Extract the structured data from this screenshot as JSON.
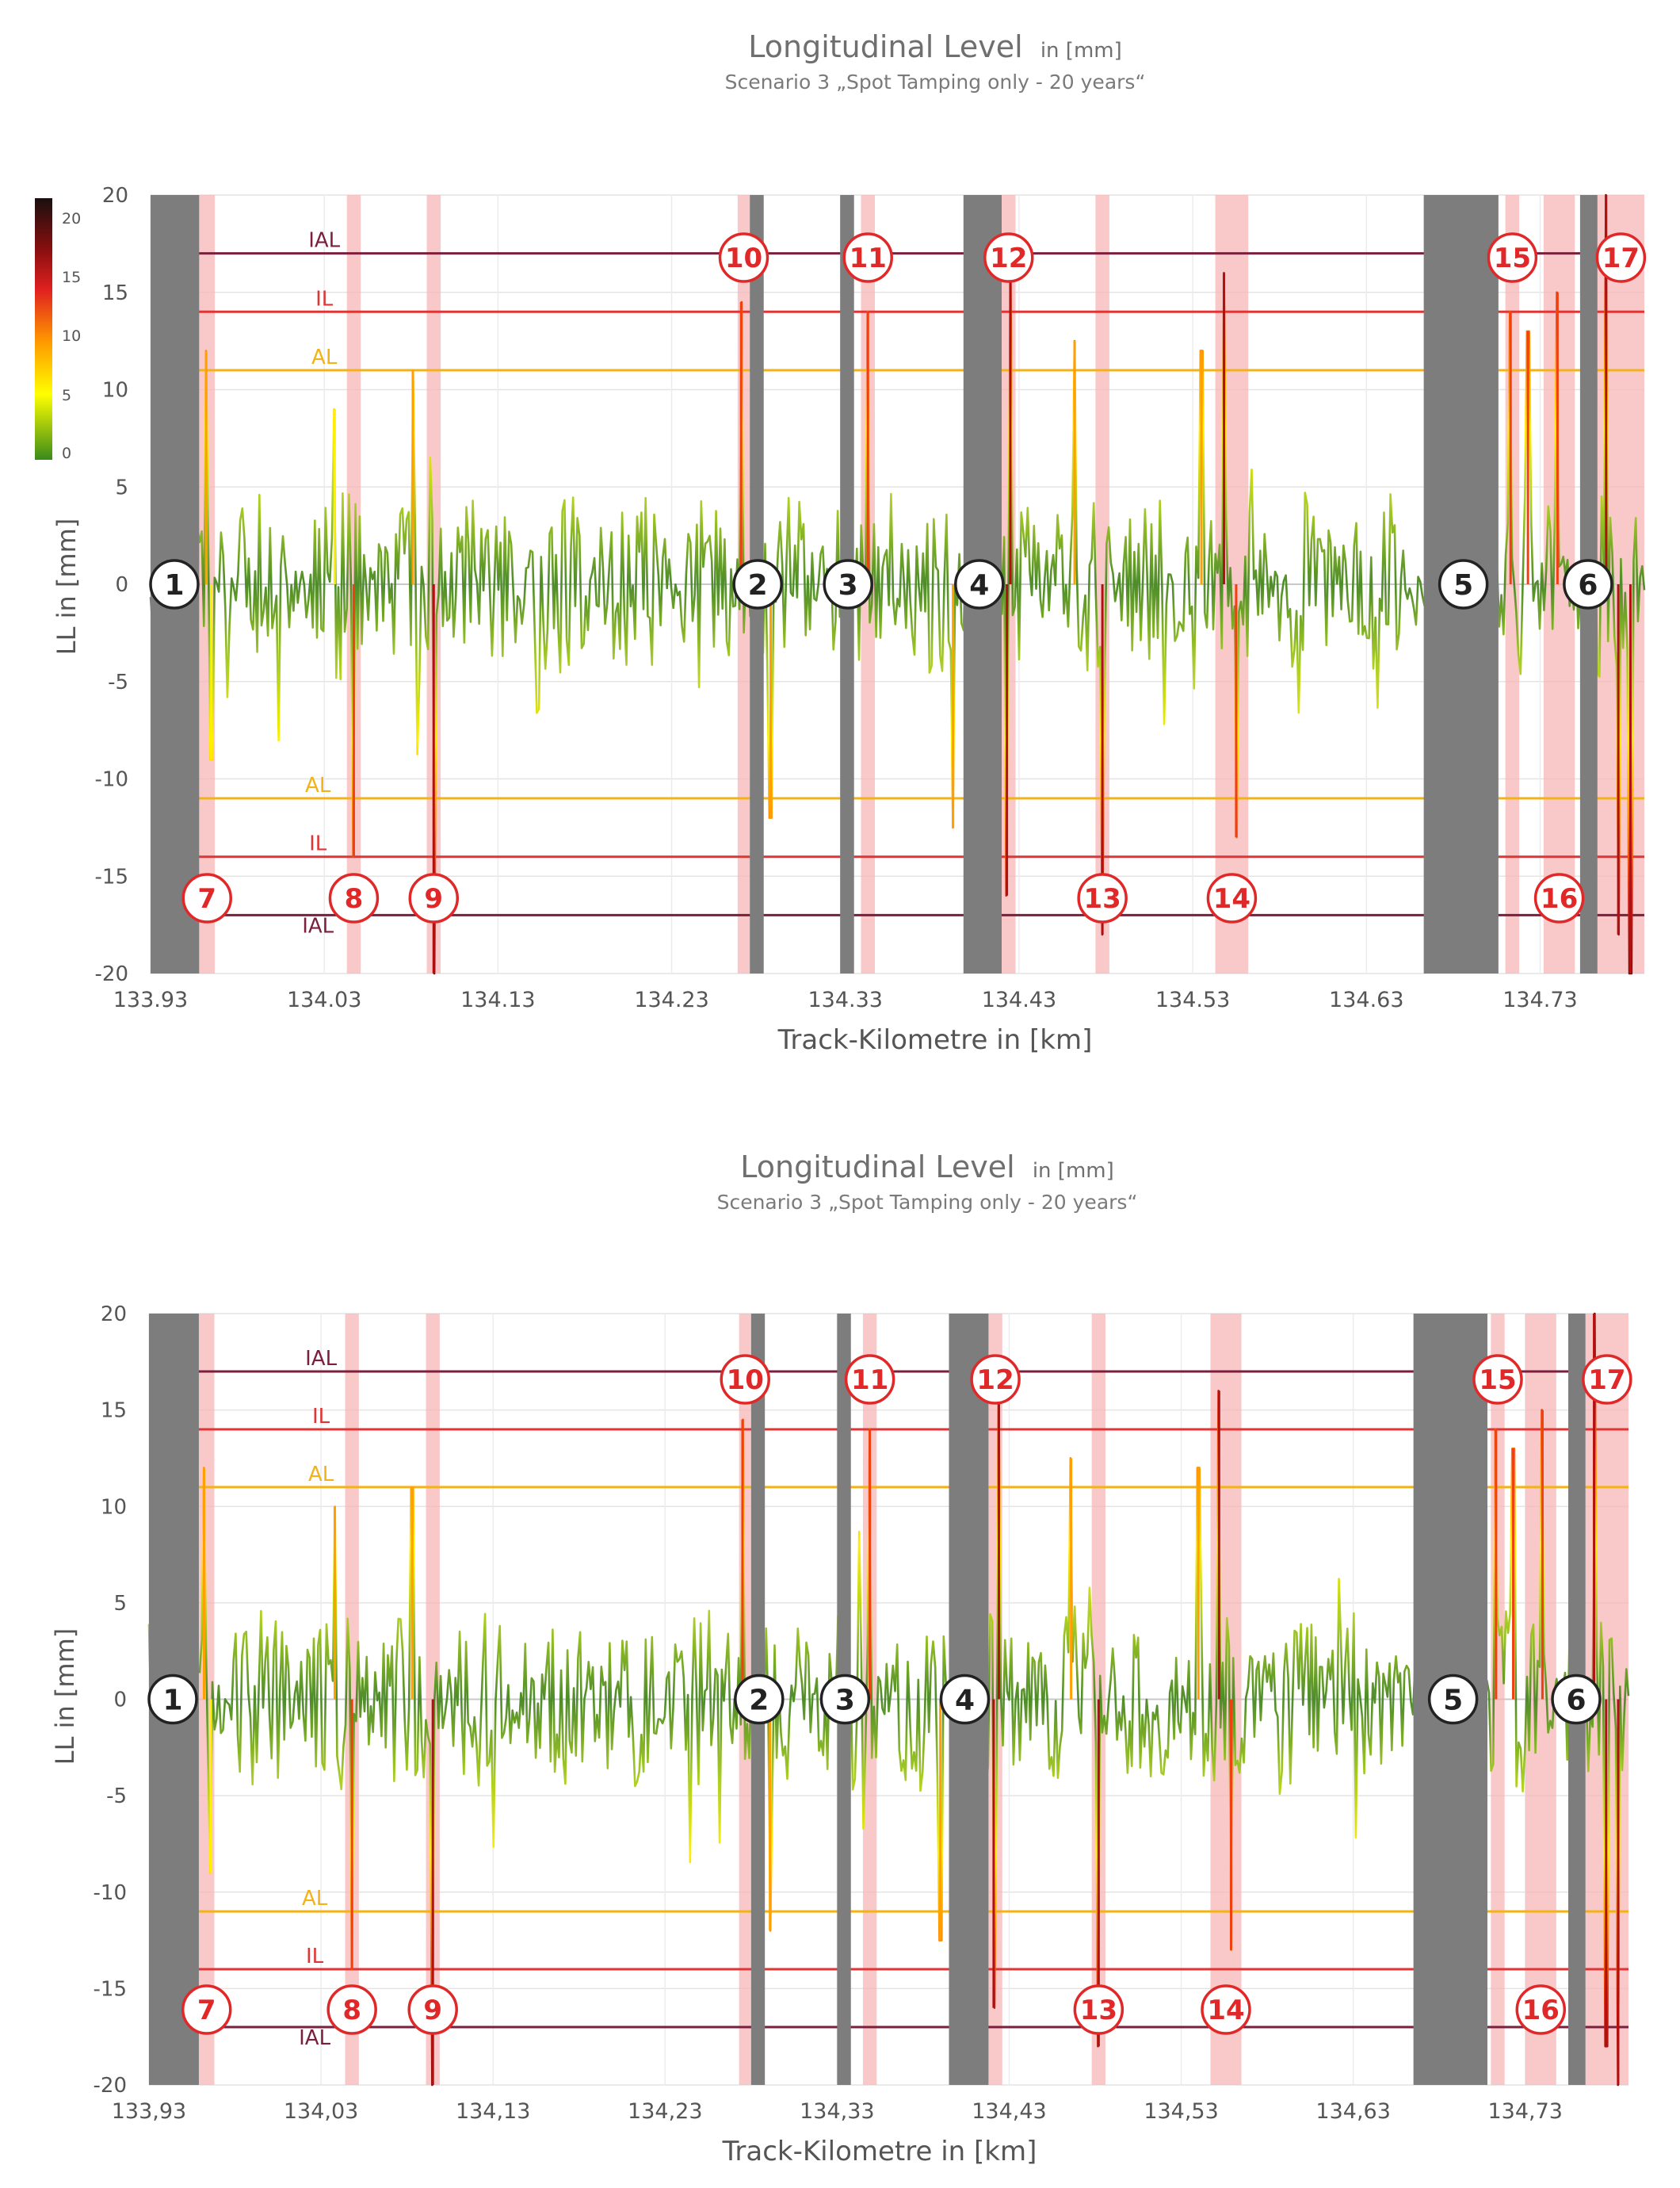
{
  "chart_data": [
    {
      "type": "line",
      "title": "Longitudinal Level",
      "title_unit": "in [mm]",
      "subtitle": "Scenario 3 „Spot Tamping only - 20 years“",
      "xlabel": "Track-Kilometre in [km]",
      "ylabel": "LL in [mm]",
      "xlim": [
        133.93,
        134.79
      ],
      "ylim": [
        -20,
        20
      ],
      "x_ticks": [
        "133.93",
        "134.03",
        "134.13",
        "134.23",
        "134.33",
        "134.43",
        "134.53",
        "134.63",
        "134.73"
      ],
      "y_ticks": [
        "20",
        "15",
        "10",
        "5",
        "0",
        "-5",
        "-10",
        "-15",
        "-20"
      ],
      "color_scale": {
        "ticks": [
          "20",
          "15",
          "10",
          "5",
          "0"
        ],
        "min": 0,
        "max": 20
      },
      "limits": [
        {
          "name": "IAL",
          "upper": 17,
          "lower": -17,
          "color": "#7a1f3d"
        },
        {
          "name": "IL",
          "upper": 14,
          "lower": -14,
          "color": "#e03535"
        },
        {
          "name": "AL",
          "upper": 11,
          "lower": -11,
          "color": "#f2b21a"
        }
      ],
      "grey_zones": [
        {
          "label": "1",
          "x0": 133.93,
          "x1": 133.958
        },
        {
          "label": "2",
          "x0": 134.275,
          "x1": 134.283
        },
        {
          "label": "3",
          "x0": 134.327,
          "x1": 134.335
        },
        {
          "label": "4",
          "x0": 134.398,
          "x1": 134.42
        },
        {
          "label": "5",
          "x0": 134.663,
          "x1": 134.706
        },
        {
          "label": "6",
          "x0": 134.753,
          "x1": 134.763
        }
      ],
      "pink_zones": [
        {
          "label": "7",
          "x0": 133.958,
          "x1": 133.967
        },
        {
          "label": "8",
          "x0": 134.043,
          "x1": 134.051
        },
        {
          "label": "9",
          "x0": 134.089,
          "x1": 134.097
        },
        {
          "label": "10",
          "x0": 134.268,
          "x1": 134.275
        },
        {
          "label": "11",
          "x0": 134.339,
          "x1": 134.347
        },
        {
          "label": "12",
          "x0": 134.42,
          "x1": 134.428
        },
        {
          "label": "13",
          "x0": 134.474,
          "x1": 134.482
        },
        {
          "label": "14",
          "x0": 134.543,
          "x1": 134.562
        },
        {
          "label": "15",
          "x0": 134.71,
          "x1": 134.718
        },
        {
          "label": "16",
          "x0": 134.732,
          "x1": 134.75
        },
        {
          "label": "17",
          "x0": 134.763,
          "x1": 134.79
        }
      ],
      "spikes": [
        {
          "x": 133.962,
          "v": 12
        },
        {
          "x": 133.965,
          "v": -9
        },
        {
          "x": 134.036,
          "v": 9
        },
        {
          "x": 134.047,
          "v": -14
        },
        {
          "x": 134.081,
          "v": 11
        },
        {
          "x": 134.093,
          "v": -20
        },
        {
          "x": 134.27,
          "v": 14.5
        },
        {
          "x": 134.279,
          "v": 10
        },
        {
          "x": 134.287,
          "v": -12
        },
        {
          "x": 134.343,
          "v": 14
        },
        {
          "x": 134.392,
          "v": -12.5
        },
        {
          "x": 134.423,
          "v": -16
        },
        {
          "x": 134.425,
          "v": 17
        },
        {
          "x": 134.462,
          "v": 12.5
        },
        {
          "x": 134.478,
          "v": -18
        },
        {
          "x": 134.535,
          "v": 12
        },
        {
          "x": 134.548,
          "v": 16
        },
        {
          "x": 134.555,
          "v": -13
        },
        {
          "x": 134.713,
          "v": 14
        },
        {
          "x": 134.723,
          "v": 13
        },
        {
          "x": 134.74,
          "v": 15
        },
        {
          "x": 134.768,
          "v": 20
        },
        {
          "x": 134.775,
          "v": -18
        },
        {
          "x": 134.782,
          "v": -20
        }
      ]
    },
    {
      "type": "line",
      "title": "Longitudinal Level",
      "title_unit": "in [mm]",
      "subtitle": "Scenario 3 „Spot Tamping only - 20 years“",
      "xlabel": "Track-Kilometre in [km]",
      "ylabel": "LL in [mm]",
      "xlim": [
        133.93,
        134.79
      ],
      "ylim": [
        -20,
        20
      ],
      "x_ticks": [
        "133,93",
        "134,03",
        "134,13",
        "134,23",
        "134,33",
        "134,43",
        "134,53",
        "134,63",
        "134,73"
      ],
      "y_ticks": [
        "20",
        "15",
        "10",
        "5",
        "0",
        "-5",
        "-10",
        "-15",
        "-20"
      ],
      "limits": [
        {
          "name": "IAL",
          "upper": 17,
          "lower": -17,
          "color": "#7a1f3d"
        },
        {
          "name": "IL",
          "upper": 14,
          "lower": -14,
          "color": "#e03535"
        },
        {
          "name": "AL",
          "upper": 11,
          "lower": -11,
          "color": "#f2b21a"
        }
      ],
      "grey_zones": [
        {
          "label": "1",
          "x0": 133.93,
          "x1": 133.959
        },
        {
          "label": "2",
          "x0": 134.28,
          "x1": 134.288
        },
        {
          "label": "3",
          "x0": 134.33,
          "x1": 134.338
        },
        {
          "label": "4",
          "x0": 134.395,
          "x1": 134.418
        },
        {
          "label": "5",
          "x0": 134.665,
          "x1": 134.708
        },
        {
          "label": "6",
          "x0": 134.755,
          "x1": 134.765
        }
      ],
      "pink_zones": [
        {
          "label": "7",
          "x0": 133.959,
          "x1": 133.968
        },
        {
          "label": "8",
          "x0": 134.044,
          "x1": 134.052
        },
        {
          "label": "9",
          "x0": 134.091,
          "x1": 134.099
        },
        {
          "label": "10",
          "x0": 134.273,
          "x1": 134.28
        },
        {
          "label": "11",
          "x0": 134.345,
          "x1": 134.353
        },
        {
          "label": "12",
          "x0": 134.418,
          "x1": 134.426
        },
        {
          "label": "13",
          "x0": 134.478,
          "x1": 134.486
        },
        {
          "label": "14",
          "x0": 134.547,
          "x1": 134.565
        },
        {
          "label": "15",
          "x0": 134.71,
          "x1": 134.718
        },
        {
          "label": "16",
          "x0": 134.73,
          "x1": 134.748
        },
        {
          "label": "17",
          "x0": 134.765,
          "x1": 134.79
        }
      ],
      "spikes": [
        {
          "x": 133.962,
          "v": 12
        },
        {
          "x": 133.966,
          "v": -9
        },
        {
          "x": 134.038,
          "v": 10
        },
        {
          "x": 134.048,
          "v": -14
        },
        {
          "x": 134.083,
          "v": 11
        },
        {
          "x": 134.095,
          "v": -20
        },
        {
          "x": 134.275,
          "v": 14.5
        },
        {
          "x": 134.284,
          "v": 10
        },
        {
          "x": 134.291,
          "v": -12
        },
        {
          "x": 134.349,
          "v": 14
        },
        {
          "x": 134.39,
          "v": -12.5
        },
        {
          "x": 134.421,
          "v": -16
        },
        {
          "x": 134.424,
          "v": 17
        },
        {
          "x": 134.466,
          "v": 12.5
        },
        {
          "x": 134.482,
          "v": -18
        },
        {
          "x": 134.54,
          "v": 12
        },
        {
          "x": 134.552,
          "v": 16
        },
        {
          "x": 134.559,
          "v": -13
        },
        {
          "x": 134.713,
          "v": 14
        },
        {
          "x": 134.723,
          "v": 13
        },
        {
          "x": 134.74,
          "v": 15
        },
        {
          "x": 134.77,
          "v": 20
        },
        {
          "x": 134.777,
          "v": -18
        },
        {
          "x": 134.784,
          "v": -20
        }
      ]
    }
  ]
}
